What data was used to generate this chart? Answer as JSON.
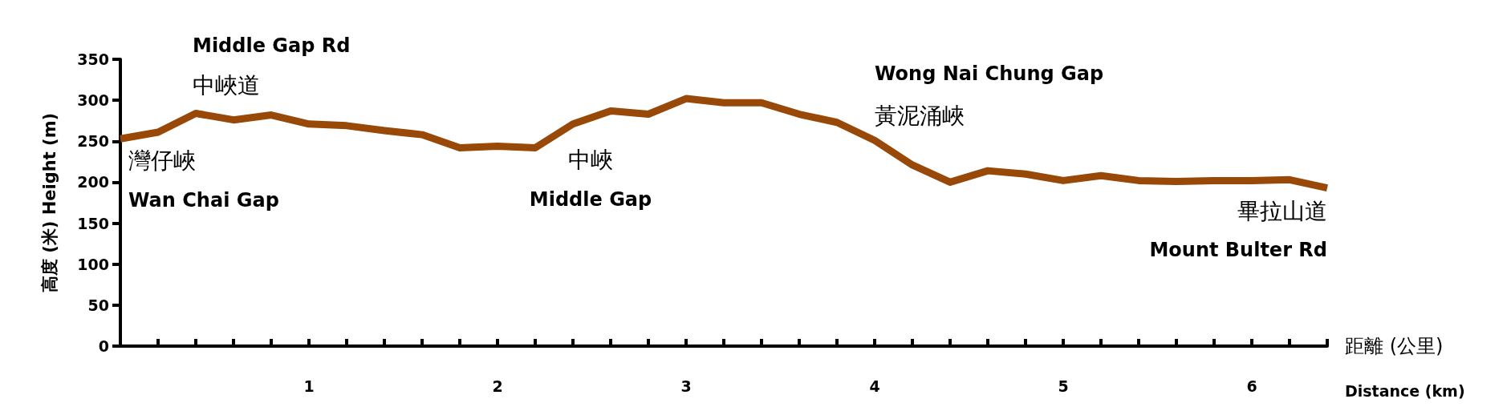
{
  "chart_data": {
    "type": "line",
    "xlabel": "距離 (公里)\nDistance (km)",
    "ylabel": "高度 (米) Height (m)",
    "x": [
      0,
      0.2,
      0.4,
      0.6,
      0.8,
      1.0,
      1.2,
      1.4,
      1.6,
      1.8,
      2.0,
      2.2,
      2.4,
      2.6,
      2.8,
      3.0,
      3.2,
      3.4,
      3.6,
      3.8,
      4.0,
      4.2,
      4.4,
      4.6,
      4.8,
      5.0,
      5.2,
      5.4,
      5.6,
      5.8,
      6.0,
      6.2,
      6.4
    ],
    "series": [
      {
        "color": "#984807",
        "values": [
          253,
          261,
          284,
          276,
          282,
          271,
          269,
          263,
          258,
          242,
          244,
          242,
          271,
          287,
          283,
          302,
          297,
          297,
          283,
          273,
          251,
          221,
          200,
          214,
          210,
          202,
          208,
          202,
          201,
          202,
          202,
          203,
          193
        ]
      }
    ],
    "xlim": [
      0,
      6.4
    ],
    "xticks": [
      {
        "value": 0,
        "label": null
      },
      {
        "value": 0.2,
        "label": null
      },
      {
        "value": 0.4,
        "label": null
      },
      {
        "value": 0.6,
        "label": null
      },
      {
        "value": 0.8,
        "label": null
      },
      1,
      {
        "value": 1.2,
        "label": null
      },
      {
        "value": 1.4,
        "label": null
      },
      {
        "value": 1.6,
        "label": null
      },
      {
        "value": 1.8,
        "label": null
      },
      2,
      {
        "value": 2.2,
        "label": null
      },
      {
        "value": 2.4,
        "label": null
      },
      {
        "value": 2.6,
        "label": null
      },
      {
        "value": 2.8,
        "label": null
      },
      3,
      {
        "value": 3.2,
        "label": null
      },
      {
        "value": 3.4,
        "label": null
      },
      {
        "value": 3.6,
        "label": null
      },
      {
        "value": 3.8,
        "label": null
      },
      4,
      {
        "value": 4.2,
        "label": null
      },
      {
        "value": 4.4,
        "label": null
      },
      {
        "value": 4.6,
        "label": null
      },
      {
        "value": 4.8,
        "label": null
      },
      5,
      {
        "value": 5.2,
        "label": null
      },
      {
        "value": 5.4,
        "label": null
      },
      {
        "value": 5.6,
        "label": null
      },
      {
        "value": 5.8,
        "label": null
      },
      6,
      {
        "value": 6.2,
        "label": null
      },
      {
        "value": 6.4,
        "label": null
      }
    ],
    "ylim": [
      0,
      350
    ],
    "yticks": [
      0,
      50,
      100,
      150,
      200,
      250,
      300,
      350
    ],
    "grid": false,
    "marker": "none",
    "line_style": "solid",
    "annotations": [
      {
        "text": "灣仔峽",
        "x": 0,
        "y": 253
      },
      {
        "text": "Wan Chai Gap",
        "x": 0,
        "y": 253
      },
      {
        "text": "中峽道",
        "x": 0.4,
        "y": 284
      },
      {
        "text": "Middle Gap Rd",
        "x": 0.4,
        "y": 284
      },
      {
        "text": "中峽",
        "x": 2.2,
        "y": 242
      },
      {
        "text": "Middle Gap",
        "x": 2.2,
        "y": 242
      },
      {
        "text": "黃泥涌峽",
        "x": 4.0,
        "y": 251
      },
      {
        "text": "Wong Nai Chung Gap",
        "x": 4.0,
        "y": 251
      },
      {
        "text": "畢拉山道",
        "x": 6.4,
        "y": 193
      },
      {
        "text": "Mount Bulter Rd",
        "x": 6.4,
        "y": 193
      }
    ]
  }
}
